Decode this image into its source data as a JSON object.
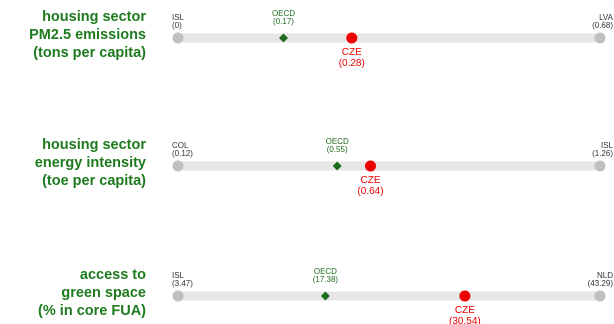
{
  "colors": {
    "label": "#1e7a1e",
    "track": "#e6e6e6",
    "endpoint": "#c0c0c0",
    "oecd": "#1e6b1e",
    "country": "#ee0000",
    "endpoint_text": "#333333"
  },
  "chart_data": [
    {
      "type": "dot-range",
      "title_lines": [
        "housing sector",
        "PM2.5 emissions",
        "(tons per capita)"
      ],
      "min": {
        "label": "ISL",
        "value": "0",
        "x": 0
      },
      "max": {
        "label": "LVA",
        "value": "0.68",
        "x": 0.68
      },
      "oecd": {
        "label": "OECD",
        "value": "0.17",
        "x": 0.17
      },
      "country": {
        "label": "CZE",
        "value": "0.28",
        "x": 0.28
      }
    },
    {
      "type": "dot-range",
      "title_lines": [
        "housing sector",
        "energy intensity",
        "(toe per capita)"
      ],
      "min": {
        "label": "COL",
        "value": "0.12",
        "x": 0.12
      },
      "max": {
        "label": "ISL",
        "value": "1.26",
        "x": 1.26
      },
      "oecd": {
        "label": "OECD",
        "value": "0.55",
        "x": 0.55
      },
      "country": {
        "label": "CZE",
        "value": "0.64",
        "x": 0.64
      }
    },
    {
      "type": "dot-range",
      "title_lines": [
        "access to",
        "green space",
        "(% in core FUA)"
      ],
      "min": {
        "label": "ISL",
        "value": "3.47",
        "x": 3.47
      },
      "max": {
        "label": "NLD",
        "value": "43.29",
        "x": 43.29
      },
      "oecd": {
        "label": "OECD",
        "value": "17.38",
        "x": 17.38
      },
      "country": {
        "label": "CZE",
        "value": "30.54",
        "x": 30.54
      }
    }
  ]
}
